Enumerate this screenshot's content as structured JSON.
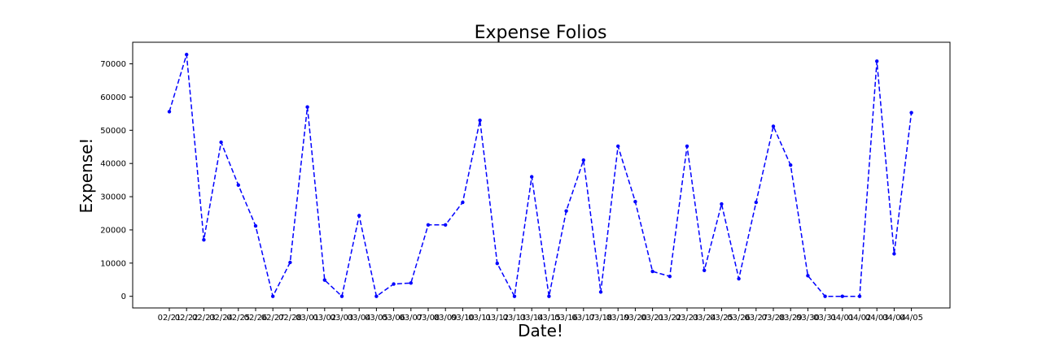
{
  "chart_data": {
    "type": "line",
    "title": "Expense Folios",
    "xlabel": "Date!",
    "ylabel": "Expense!",
    "categories": [
      "02/21",
      "02/22",
      "02/23",
      "02/24",
      "02/25",
      "02/26",
      "02/27",
      "02/28",
      "03/01",
      "03/02",
      "03/03",
      "03/04",
      "03/05",
      "03/06",
      "03/07",
      "03/08",
      "03/09",
      "03/10",
      "03/11",
      "03/12",
      "03/13",
      "03/14",
      "03/15",
      "03/16",
      "03/17",
      "03/18",
      "03/19",
      "03/20",
      "03/21",
      "03/22",
      "03/23",
      "03/24",
      "03/25",
      "03/26",
      "03/27",
      "03/28",
      "03/29",
      "03/30",
      "03/31",
      "04/01",
      "04/02",
      "04/03",
      "04/04",
      "04/05"
    ],
    "series": [
      {
        "values": [
          55600,
          72800,
          17000,
          46400,
          33500,
          21200,
          0,
          10200,
          57000,
          4900,
          0,
          24300,
          0,
          3700,
          4000,
          21500,
          21500,
          28300,
          53000,
          9900,
          0,
          36000,
          0,
          25700,
          41000,
          1300,
          45200,
          28500,
          7500,
          6000,
          45200,
          7800,
          27800,
          5300,
          28300,
          51200,
          39500,
          6200,
          0,
          0,
          0,
          70800,
          12800,
          55300
        ],
        "color": "#0000ff",
        "line_style": "dashed",
        "marker": "dot"
      }
    ],
    "ylim": [
      -3500,
      76500
    ],
    "yticks": [
      0,
      10000,
      20000,
      30000,
      40000,
      50000,
      60000,
      70000
    ],
    "ytick_labels": [
      "0",
      "10000",
      "20000",
      "30000",
      "40000",
      "50000",
      "60000",
      "70000"
    ],
    "grid": false,
    "legend": "none"
  }
}
